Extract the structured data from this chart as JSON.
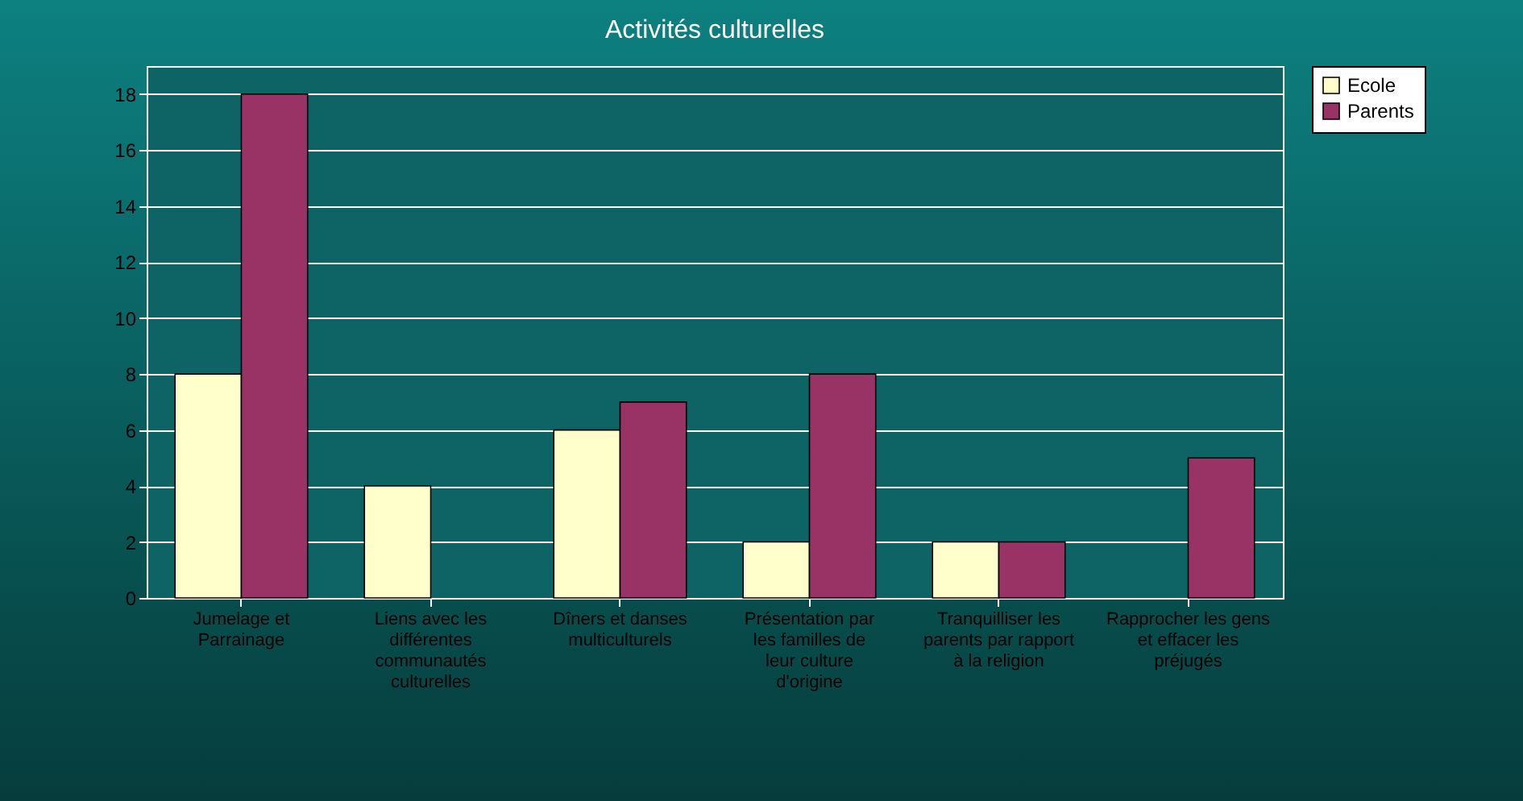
{
  "chart_data": {
    "type": "bar",
    "title": "Activités culturelles",
    "categories": [
      "Jumelage et Parrainage",
      "Liens avec les différentes communautés culturelles",
      "Dîners et danses multiculturels",
      "Présentation par les familles de leur culture d'origine",
      "Tranquilliser les parents par rapport à la religion",
      "Rapprocher les gens et effacer les préjugés"
    ],
    "series": [
      {
        "name": "Ecole",
        "color": "#ffffcc",
        "values": [
          8,
          4,
          6,
          2,
          2,
          null
        ]
      },
      {
        "name": "Parents",
        "color": "#993366",
        "values": [
          18,
          null,
          7,
          8,
          2,
          5
        ]
      }
    ],
    "ylim": [
      0,
      19
    ],
    "yticks": [
      0,
      2,
      4,
      6,
      8,
      10,
      12,
      14,
      16,
      18
    ],
    "grid": "y",
    "legend": "right"
  }
}
